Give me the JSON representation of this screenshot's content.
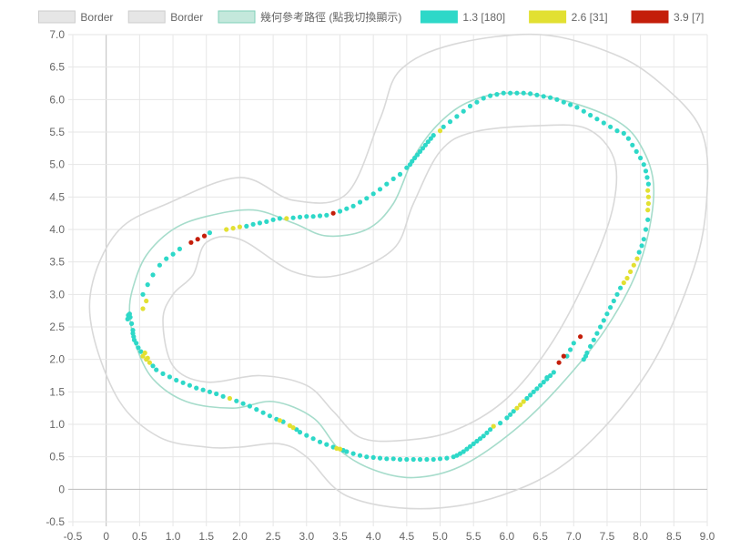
{
  "chart_data": {
    "type": "scatter",
    "x_ticks": [
      "-0.5",
      "0",
      "0.5",
      "1.0",
      "1.5",
      "2.0",
      "2.5",
      "3.0",
      "3.5",
      "4.0",
      "4.5",
      "5.0",
      "5.5",
      "6.0",
      "6.5",
      "7.0",
      "7.5",
      "8.0",
      "8.5",
      "9.0"
    ],
    "y_ticks": [
      "-0.5",
      "0",
      "0.5",
      "1.0",
      "1.5",
      "2.0",
      "2.5",
      "3.0",
      "3.5",
      "4.0",
      "4.5",
      "5.0",
      "5.5",
      "6.0",
      "6.5",
      "7.0"
    ],
    "xlim": [
      -0.5,
      9.0
    ],
    "ylim": [
      -0.5,
      7.0
    ],
    "grid": true,
    "legend_position": "top",
    "legend": [
      {
        "label": "Border",
        "fill": "#e6e6e6",
        "stroke": "#cccccc"
      },
      {
        "label": "Border",
        "fill": "#e6e6e6",
        "stroke": "#cccccc"
      },
      {
        "label": "幾何參考路徑 (點我切換顯示)",
        "fill": "#c4e8dc",
        "stroke": "#7fd0b9"
      },
      {
        "label": "1.3 [180]",
        "fill": "#2ed8c8",
        "stroke": "#2ed8c8"
      },
      {
        "label": "2.6 [31]",
        "fill": "#e2e032",
        "stroke": "#e2e032"
      },
      {
        "label": "3.9 [7]",
        "fill": "#c41e0a",
        "stroke": "#c41e0a"
      }
    ],
    "colors": {
      "border": "#d9d9d9",
      "reference": "#a6dccb",
      "speed_1_3": "#2ed8c8",
      "speed_2_6": "#e2e032",
      "speed_3_9": "#c41e0a",
      "grid": "#e6e6e6",
      "zero_axis": "#bdbdbd"
    },
    "lines": {
      "outer_border": [
        [
          0.92,
          4.4
        ],
        [
          2.0,
          4.8
        ],
        [
          2.8,
          4.45
        ],
        [
          3.6,
          4.55
        ],
        [
          4.1,
          5.7
        ],
        [
          4.4,
          6.45
        ],
        [
          5.2,
          6.85
        ],
        [
          6.5,
          7.0
        ],
        [
          7.6,
          6.7
        ],
        [
          8.3,
          6.25
        ],
        [
          8.9,
          5.55
        ],
        [
          9.0,
          4.6
        ],
        [
          8.8,
          3.4
        ],
        [
          8.1,
          1.8
        ],
        [
          7.0,
          0.5
        ],
        [
          5.9,
          -0.1
        ],
        [
          4.7,
          -0.3
        ],
        [
          3.6,
          -0.1
        ],
        [
          3.0,
          0.5
        ],
        [
          2.6,
          0.7
        ],
        [
          2.0,
          0.65
        ],
        [
          1.5,
          0.65
        ],
        [
          0.8,
          0.8
        ],
        [
          0.2,
          1.35
        ],
        [
          -0.2,
          2.4
        ],
        [
          -0.2,
          3.2
        ],
        [
          0.2,
          4.0
        ],
        [
          0.92,
          4.4
        ]
      ],
      "inner_border": [
        [
          1.3,
          3.3
        ],
        [
          1.5,
          3.8
        ],
        [
          2.0,
          3.85
        ],
        [
          2.8,
          3.35
        ],
        [
          3.5,
          3.3
        ],
        [
          4.3,
          3.7
        ],
        [
          4.6,
          4.4
        ],
        [
          5.0,
          5.2
        ],
        [
          5.5,
          5.5
        ],
        [
          6.5,
          5.6
        ],
        [
          7.2,
          5.55
        ],
        [
          7.6,
          5.1
        ],
        [
          7.6,
          4.4
        ],
        [
          7.3,
          3.5
        ],
        [
          6.7,
          2.3
        ],
        [
          6.0,
          1.4
        ],
        [
          5.2,
          0.9
        ],
        [
          4.4,
          0.75
        ],
        [
          3.8,
          0.8
        ],
        [
          3.4,
          1.2
        ],
        [
          3.0,
          1.6
        ],
        [
          2.3,
          1.75
        ],
        [
          1.5,
          1.65
        ],
        [
          1.0,
          1.9
        ],
        [
          0.85,
          2.6
        ],
        [
          1.0,
          3.0
        ],
        [
          1.3,
          3.3
        ]
      ],
      "reference": [
        [
          0.35,
          2.7
        ],
        [
          0.4,
          3.1
        ],
        [
          0.6,
          3.6
        ],
        [
          1.0,
          4.0
        ],
        [
          1.5,
          4.2
        ],
        [
          2.2,
          4.3
        ],
        [
          2.8,
          4.1
        ],
        [
          3.3,
          3.9
        ],
        [
          3.9,
          4.0
        ],
        [
          4.3,
          4.4
        ],
        [
          4.6,
          5.1
        ],
        [
          4.95,
          5.6
        ],
        [
          5.4,
          5.95
        ],
        [
          6.0,
          6.1
        ],
        [
          6.8,
          6.0
        ],
        [
          7.6,
          5.7
        ],
        [
          8.0,
          5.3
        ],
        [
          8.2,
          4.6
        ],
        [
          8.0,
          3.5
        ],
        [
          7.5,
          2.5
        ],
        [
          6.8,
          1.6
        ],
        [
          6.1,
          0.9
        ],
        [
          5.3,
          0.35
        ],
        [
          4.6,
          0.18
        ],
        [
          4.0,
          0.3
        ],
        [
          3.5,
          0.6
        ],
        [
          3.1,
          1.1
        ],
        [
          2.5,
          1.35
        ],
        [
          1.9,
          1.25
        ],
        [
          1.2,
          1.35
        ],
        [
          0.7,
          1.7
        ],
        [
          0.45,
          2.2
        ],
        [
          0.35,
          2.7
        ]
      ]
    },
    "series": [
      {
        "name": "1.3 [180]",
        "color": "#2ed8c8",
        "points": [
          [
            0.45,
            2.25
          ],
          [
            0.4,
            2.4
          ],
          [
            0.38,
            2.55
          ],
          [
            0.36,
            2.65
          ],
          [
            0.35,
            2.7
          ],
          [
            0.33,
            2.68
          ],
          [
            0.55,
            3.0
          ],
          [
            0.62,
            3.15
          ],
          [
            0.7,
            3.3
          ],
          [
            0.8,
            3.45
          ],
          [
            0.9,
            3.55
          ],
          [
            1.0,
            3.62
          ],
          [
            1.1,
            3.7
          ],
          [
            1.55,
            3.95
          ],
          [
            2.1,
            4.05
          ],
          [
            2.2,
            4.08
          ],
          [
            2.3,
            4.1
          ],
          [
            2.4,
            4.12
          ],
          [
            2.5,
            4.15
          ],
          [
            2.6,
            4.17
          ],
          [
            2.8,
            4.18
          ],
          [
            2.9,
            4.19
          ],
          [
            3.0,
            4.2
          ],
          [
            3.1,
            4.2
          ],
          [
            3.2,
            4.21
          ],
          [
            3.3,
            4.22
          ],
          [
            3.5,
            4.28
          ],
          [
            3.6,
            4.32
          ],
          [
            3.7,
            4.36
          ],
          [
            3.8,
            4.42
          ],
          [
            3.9,
            4.48
          ],
          [
            4.0,
            4.55
          ],
          [
            4.1,
            4.62
          ],
          [
            4.2,
            4.7
          ],
          [
            4.3,
            4.78
          ],
          [
            4.4,
            4.85
          ],
          [
            4.5,
            4.95
          ],
          [
            4.58,
            5.05
          ],
          [
            4.66,
            5.15
          ],
          [
            4.74,
            5.25
          ],
          [
            4.82,
            5.35
          ],
          [
            4.9,
            5.45
          ],
          [
            5.05,
            5.58
          ],
          [
            5.15,
            5.66
          ],
          [
            5.25,
            5.74
          ],
          [
            5.35,
            5.82
          ],
          [
            5.45,
            5.9
          ],
          [
            5.55,
            5.96
          ],
          [
            5.65,
            6.02
          ],
          [
            5.75,
            6.06
          ],
          [
            5.85,
            6.08
          ],
          [
            5.95,
            6.1
          ],
          [
            6.05,
            6.1
          ],
          [
            6.15,
            6.1
          ],
          [
            6.25,
            6.1
          ],
          [
            6.35,
            6.09
          ],
          [
            6.45,
            6.07
          ],
          [
            6.55,
            6.05
          ],
          [
            6.65,
            6.03
          ],
          [
            6.75,
            6.0
          ],
          [
            6.85,
            5.96
          ],
          [
            6.95,
            5.92
          ],
          [
            7.05,
            5.88
          ],
          [
            7.15,
            5.82
          ],
          [
            7.25,
            5.76
          ],
          [
            7.35,
            5.7
          ],
          [
            7.45,
            5.64
          ],
          [
            7.55,
            5.58
          ],
          [
            7.65,
            5.52
          ],
          [
            7.75,
            5.48
          ],
          [
            7.82,
            5.4
          ],
          [
            7.88,
            5.3
          ],
          [
            7.94,
            5.2
          ],
          [
            8.0,
            5.1
          ],
          [
            8.05,
            5.0
          ],
          [
            8.08,
            4.9
          ],
          [
            8.1,
            4.8
          ],
          [
            8.12,
            4.7
          ],
          [
            8.11,
            4.15
          ],
          [
            8.08,
            4.0
          ],
          [
            8.05,
            3.85
          ],
          [
            8.02,
            3.75
          ],
          [
            7.98,
            3.65
          ],
          [
            7.7,
            3.1
          ],
          [
            7.65,
            3.0
          ],
          [
            7.6,
            2.9
          ],
          [
            7.55,
            2.8
          ],
          [
            7.5,
            2.7
          ],
          [
            7.45,
            2.6
          ],
          [
            7.4,
            2.5
          ],
          [
            7.35,
            2.4
          ],
          [
            7.3,
            2.3
          ],
          [
            7.25,
            2.2
          ],
          [
            7.2,
            2.1
          ],
          [
            7.15,
            2.0
          ],
          [
            7.0,
            2.25
          ],
          [
            6.95,
            2.15
          ],
          [
            6.9,
            2.05
          ],
          [
            6.7,
            1.8
          ],
          [
            6.65,
            1.75
          ],
          [
            6.6,
            1.7
          ],
          [
            6.55,
            1.65
          ],
          [
            6.5,
            1.6
          ],
          [
            6.45,
            1.55
          ],
          [
            6.4,
            1.5
          ],
          [
            6.35,
            1.45
          ],
          [
            6.3,
            1.4
          ],
          [
            6.1,
            1.2
          ],
          [
            6.05,
            1.15
          ],
          [
            6.0,
            1.1
          ],
          [
            5.9,
            1.02
          ],
          [
            5.75,
            0.92
          ],
          [
            5.7,
            0.87
          ],
          [
            5.65,
            0.82
          ],
          [
            5.6,
            0.78
          ],
          [
            5.55,
            0.74
          ],
          [
            5.5,
            0.7
          ],
          [
            5.45,
            0.66
          ],
          [
            5.4,
            0.62
          ],
          [
            5.35,
            0.58
          ],
          [
            5.3,
            0.55
          ],
          [
            5.25,
            0.52
          ],
          [
            5.2,
            0.5
          ],
          [
            5.1,
            0.48
          ],
          [
            5.0,
            0.47
          ],
          [
            4.9,
            0.46
          ],
          [
            4.8,
            0.46
          ],
          [
            4.7,
            0.46
          ],
          [
            4.6,
            0.46
          ],
          [
            4.5,
            0.46
          ],
          [
            4.4,
            0.46
          ],
          [
            4.3,
            0.47
          ],
          [
            4.2,
            0.47
          ],
          [
            4.1,
            0.48
          ],
          [
            4.0,
            0.49
          ],
          [
            3.9,
            0.5
          ],
          [
            3.8,
            0.52
          ],
          [
            3.7,
            0.55
          ],
          [
            3.6,
            0.58
          ],
          [
            3.55,
            0.6
          ],
          [
            3.4,
            0.65
          ],
          [
            3.3,
            0.69
          ],
          [
            3.2,
            0.73
          ],
          [
            3.1,
            0.78
          ],
          [
            3.0,
            0.83
          ],
          [
            2.9,
            0.88
          ],
          [
            2.85,
            0.92
          ],
          [
            2.65,
            1.04
          ],
          [
            2.55,
            1.08
          ],
          [
            2.45,
            1.13
          ],
          [
            2.35,
            1.18
          ],
          [
            2.25,
            1.23
          ],
          [
            2.15,
            1.28
          ],
          [
            2.05,
            1.32
          ],
          [
            1.95,
            1.36
          ],
          [
            1.75,
            1.43
          ],
          [
            1.65,
            1.47
          ],
          [
            1.55,
            1.5
          ],
          [
            1.45,
            1.53
          ],
          [
            1.35,
            1.56
          ],
          [
            1.25,
            1.6
          ],
          [
            1.15,
            1.64
          ],
          [
            1.05,
            1.68
          ],
          [
            0.95,
            1.73
          ],
          [
            0.85,
            1.78
          ],
          [
            0.75,
            1.84
          ],
          [
            0.7,
            1.9
          ],
          [
            0.52,
            2.12
          ],
          [
            0.48,
            2.18
          ],
          [
            0.42,
            2.3
          ],
          [
            0.41,
            2.35
          ],
          [
            0.4,
            2.45
          ],
          [
            0.32,
            2.62
          ],
          [
            4.55,
            5.0
          ],
          [
            4.62,
            5.1
          ],
          [
            4.7,
            5.2
          ],
          [
            4.78,
            5.3
          ],
          [
            4.86,
            5.4
          ],
          [
            6.6,
            1.72
          ],
          [
            7.18,
            2.05
          ]
        ]
      },
      {
        "name": "2.6 [31]",
        "color": "#e2e032",
        "points": [
          [
            0.55,
            2.78
          ],
          [
            0.6,
            2.9
          ],
          [
            1.8,
            4.0
          ],
          [
            1.9,
            4.02
          ],
          [
            2.0,
            4.04
          ],
          [
            2.7,
            4.17
          ],
          [
            5.0,
            5.52
          ],
          [
            8.11,
            4.6
          ],
          [
            8.12,
            4.5
          ],
          [
            8.12,
            4.4
          ],
          [
            8.11,
            4.3
          ],
          [
            7.95,
            3.55
          ],
          [
            7.9,
            3.45
          ],
          [
            7.85,
            3.35
          ],
          [
            7.8,
            3.25
          ],
          [
            7.75,
            3.18
          ],
          [
            6.25,
            1.35
          ],
          [
            6.2,
            1.3
          ],
          [
            6.15,
            1.25
          ],
          [
            5.8,
            0.97
          ],
          [
            2.75,
            0.98
          ],
          [
            2.8,
            0.95
          ],
          [
            2.6,
            1.06
          ],
          [
            3.5,
            0.62
          ],
          [
            3.45,
            0.63
          ],
          [
            1.85,
            1.4
          ],
          [
            0.6,
            2.0
          ],
          [
            0.65,
            1.95
          ],
          [
            0.55,
            2.05
          ],
          [
            0.58,
            2.1
          ],
          [
            0.62,
            2.02
          ]
        ]
      },
      {
        "name": "3.9 [7]",
        "color": "#c41e0a",
        "points": [
          [
            1.27,
            3.8
          ],
          [
            1.37,
            3.85
          ],
          [
            1.47,
            3.9
          ],
          [
            3.4,
            4.25
          ],
          [
            7.1,
            2.35
          ],
          [
            6.85,
            2.05
          ],
          [
            6.78,
            1.95
          ]
        ]
      }
    ]
  }
}
